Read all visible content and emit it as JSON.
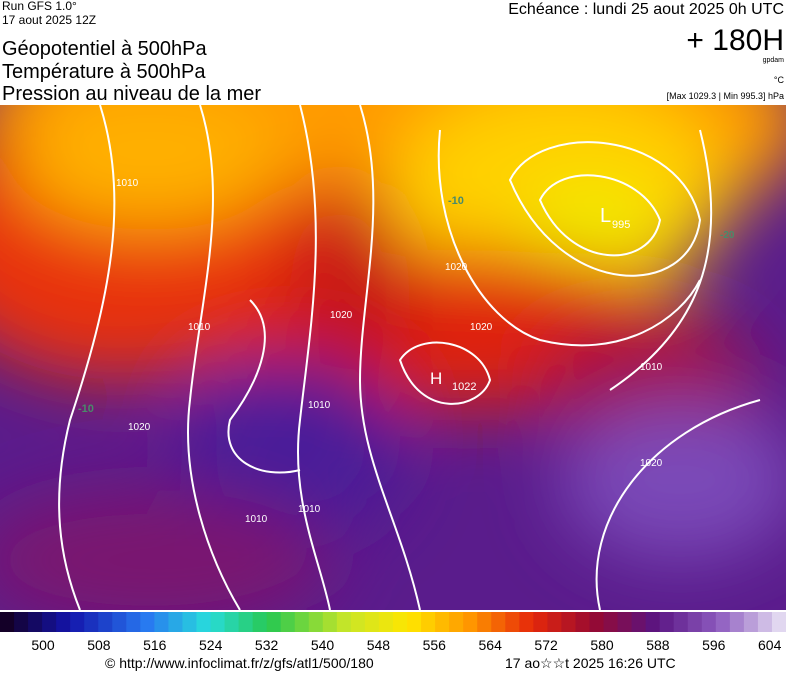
{
  "header": {
    "run": "Run GFS 1.0°",
    "date": "17 aout 2025 12Z",
    "titles": [
      "Géopotentiel à 500hPa",
      "Température à 500hPa",
      "Pression au niveau de la mer"
    ],
    "echeance": "Echéance : lundi 25 aout 2025 0h UTC",
    "lead": "+ 180H",
    "unit_geo": "gpdam",
    "unit_temp": "°C",
    "pressure_range": "[Max 1029.3 | Min 995.3] hPa"
  },
  "map": {
    "labels": [
      {
        "text": "L"
      },
      {
        "text": "995"
      },
      {
        "text": "H"
      },
      {
        "text": "1022"
      },
      {
        "text": "1010"
      },
      {
        "text": "1020"
      },
      {
        "text": "1010"
      },
      {
        "text": "1020"
      },
      {
        "text": "1010"
      },
      {
        "text": "1010"
      },
      {
        "text": "1010"
      },
      {
        "text": "1020"
      },
      {
        "text": "1020"
      },
      {
        "text": "1010"
      },
      {
        "text": "1020"
      },
      {
        "text": "-20"
      },
      {
        "text": "-10"
      },
      {
        "text": "-10"
      }
    ]
  },
  "legend": {
    "labels": [
      500,
      508,
      516,
      524,
      532,
      540,
      548,
      556,
      564,
      572,
      580,
      588,
      596,
      604
    ]
  },
  "footer": {
    "url": "© http://www.infoclimat.fr/z/gfs/atl1/500/180",
    "timestamp": "17 ao☆☆t 2025 16:26 UTC"
  }
}
